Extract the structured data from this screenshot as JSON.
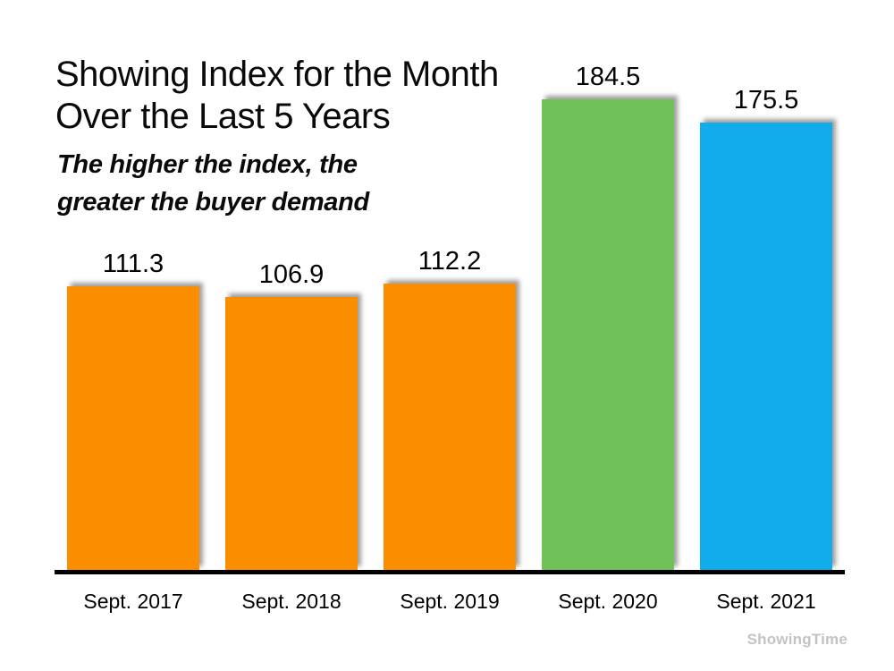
{
  "page": {
    "background": "#ffffff"
  },
  "header": {
    "title_line1": "Showing Index for the Month",
    "title_line2": "Over the Last 5 Years",
    "subtitle_line1": "The higher the index, the",
    "subtitle_line2": "greater the buyer demand"
  },
  "chart_data": {
    "type": "bar",
    "title": "Showing Index for the Month Over the Last 5 Years",
    "subtitle": "The higher the index, the greater the buyer demand",
    "categories": [
      "Sept. 2017",
      "Sept. 2018",
      "Sept. 2019",
      "Sept. 2020",
      "Sept. 2021"
    ],
    "values": [
      111.3,
      106.9,
      112.2,
      184.5,
      175.5
    ],
    "data_labels": [
      "111.3",
      "106.9",
      "112.2",
      "184.5",
      "175.5"
    ],
    "bar_colors": [
      "#FA8D00",
      "#FA8D00",
      "#FA8D00",
      "#71C159",
      "#10ACEC"
    ],
    "ylim": [
      0,
      200
    ],
    "grid": false,
    "legend": false,
    "axis_line_color": "#000000",
    "data_label_position": "above-bar"
  },
  "footer": {
    "watermark": "ShowingTime"
  }
}
